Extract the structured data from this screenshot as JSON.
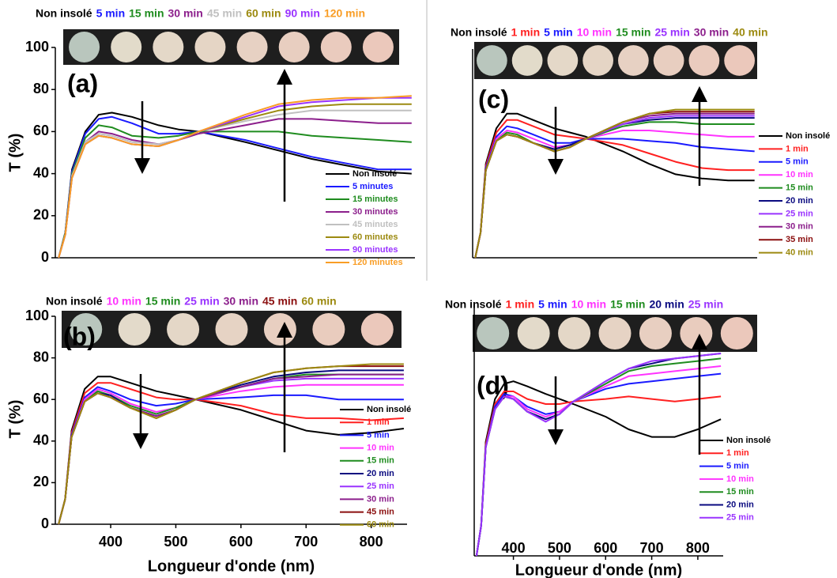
{
  "chart_data": [
    {
      "type": "line",
      "panel_label": "(a)",
      "ylabel": "T (%)",
      "strip_labels": [
        {
          "text": "Non insolé",
          "color": "#000000"
        },
        {
          "text": "5 min",
          "color": "#1a1aff"
        },
        {
          "text": "15 min",
          "color": "#1f8c1f"
        },
        {
          "text": "30 min",
          "color": "#8c1f8c"
        },
        {
          "text": "45 min",
          "color": "#c0c0c0"
        },
        {
          "text": "60 min",
          "color": "#9c8a10"
        },
        {
          "text": "90 min",
          "color": "#9a33ff"
        },
        {
          "text": "120 min",
          "color": "#f99d25"
        }
      ],
      "x": [
        320,
        330,
        340,
        360,
        380,
        400,
        430,
        470,
        500,
        530,
        600,
        650,
        700,
        750,
        800,
        850
      ],
      "xlim": [
        315,
        855
      ],
      "ylim": [
        0,
        100
      ],
      "yticks": [
        0,
        20,
        40,
        60,
        80,
        100
      ],
      "series": [
        {
          "name": "Non insolé",
          "color": "#000000",
          "values": [
            0,
            12,
            42,
            60,
            68,
            69,
            67,
            63,
            61,
            60,
            55,
            51,
            47,
            44,
            41,
            40
          ]
        },
        {
          "name": "5 minutes",
          "color": "#1a1aff",
          "values": [
            0,
            12,
            41,
            59,
            66,
            67,
            64,
            59,
            59,
            60,
            56,
            52,
            48,
            45,
            42,
            42
          ]
        },
        {
          "name": "15 minutes",
          "color": "#1f8c1f",
          "values": [
            0,
            12,
            40,
            57,
            63,
            62,
            58,
            57,
            58,
            60,
            60,
            60,
            58,
            57,
            56,
            55
          ]
        },
        {
          "name": "30 minutes",
          "color": "#8c1f8c",
          "values": [
            0,
            11,
            39,
            55,
            60,
            59,
            56,
            54,
            56,
            59,
            63,
            66,
            66,
            65,
            64,
            64
          ]
        },
        {
          "name": "45 minutes",
          "color": "#c0c0c0",
          "values": [
            0,
            11,
            39,
            55,
            59,
            58,
            55,
            54,
            56,
            60,
            65,
            68,
            70,
            70,
            70,
            70
          ]
        },
        {
          "name": "60 minutes",
          "color": "#9c8a10",
          "values": [
            0,
            11,
            38,
            54,
            58,
            57,
            54,
            53,
            56,
            60,
            66,
            70,
            72,
            73,
            73,
            73
          ]
        },
        {
          "name": "90 minutes",
          "color": "#9a33ff",
          "values": [
            0,
            11,
            38,
            54,
            58,
            57,
            54,
            53,
            56,
            60,
            67,
            72,
            74,
            75,
            76,
            76
          ]
        },
        {
          "name": "120 minutes",
          "color": "#f99d25",
          "values": [
            0,
            11,
            38,
            54,
            58,
            57,
            54,
            53,
            56,
            60,
            68,
            73,
            75,
            76,
            76,
            77
          ]
        }
      ]
    },
    {
      "type": "line",
      "panel_label": "(b)",
      "ylabel": "T (%)",
      "xlabel": "Longueur d'onde (nm)",
      "strip_labels": [
        {
          "text": "Non insolé",
          "color": "#000000"
        },
        {
          "text": "10 min",
          "color": "#ff33ff"
        },
        {
          "text": "15 min",
          "color": "#1f8c1f"
        },
        {
          "text": "25 min",
          "color": "#9a33ff"
        },
        {
          "text": "30 min",
          "color": "#8c1f8c"
        },
        {
          "text": "45 min",
          "color": "#8b0f0f"
        },
        {
          "text": "60 min",
          "color": "#9c8a10"
        }
      ],
      "x": [
        320,
        330,
        340,
        360,
        380,
        400,
        430,
        470,
        500,
        530,
        600,
        650,
        700,
        750,
        800,
        850
      ],
      "xlim": [
        315,
        855
      ],
      "ylim": [
        0,
        100
      ],
      "yticks": [
        0,
        20,
        40,
        60,
        80,
        100
      ],
      "xticks": [
        400,
        500,
        600,
        700,
        800
      ],
      "series": [
        {
          "name": "Non insolé",
          "color": "#000000",
          "values": [
            0,
            12,
            45,
            65,
            71,
            71,
            68,
            64,
            62,
            60,
            55,
            50,
            45,
            43,
            44,
            46
          ]
        },
        {
          "name": "1 min",
          "color": "#ff2020",
          "values": [
            0,
            12,
            44,
            63,
            68,
            68,
            65,
            61,
            60,
            60,
            57,
            53,
            51,
            51,
            50,
            51
          ]
        },
        {
          "name": "5 min",
          "color": "#1a1aff",
          "values": [
            0,
            12,
            43,
            61,
            66,
            64,
            60,
            57,
            58,
            60,
            61,
            62,
            62,
            60,
            60,
            60
          ]
        },
        {
          "name": "10 min",
          "color": "#ff33ff",
          "values": [
            0,
            12,
            42,
            60,
            65,
            63,
            58,
            54,
            56,
            60,
            64,
            66,
            67,
            67,
            67,
            67
          ]
        },
        {
          "name": "15 min",
          "color": "#1f8c1f",
          "values": [
            0,
            12,
            42,
            59,
            64,
            62,
            57,
            53,
            56,
            60,
            66,
            70,
            72,
            72,
            72,
            72
          ]
        },
        {
          "name": "20 min",
          "color": "#0a0a80",
          "values": [
            0,
            12,
            42,
            59,
            63,
            62,
            56,
            52,
            55,
            60,
            67,
            71,
            73,
            74,
            74,
            74
          ]
        },
        {
          "name": "25 min",
          "color": "#9a33ff",
          "values": [
            0,
            12,
            42,
            59,
            63,
            61,
            56,
            52,
            55,
            60,
            66,
            69,
            70,
            70,
            70,
            70
          ]
        },
        {
          "name": "30 min",
          "color": "#8c1f8c",
          "values": [
            0,
            12,
            42,
            59,
            63,
            61,
            56,
            52,
            55,
            60,
            66,
            70,
            71,
            72,
            72,
            72
          ]
        },
        {
          "name": "45 min",
          "color": "#8b0f0f",
          "values": [
            0,
            12,
            42,
            59,
            63,
            61,
            56,
            51,
            55,
            60,
            68,
            73,
            75,
            76,
            76,
            76
          ]
        },
        {
          "name": "60 min",
          "color": "#9c8a10",
          "values": [
            0,
            12,
            42,
            59,
            63,
            61,
            56,
            51,
            55,
            60,
            68,
            73,
            75,
            76,
            77,
            77
          ]
        }
      ]
    },
    {
      "type": "line",
      "panel_label": "(c)",
      "strip_labels": [
        {
          "text": "Non insolé",
          "color": "#000000"
        },
        {
          "text": "1 min",
          "color": "#ff2020"
        },
        {
          "text": "5 min",
          "color": "#1a1aff"
        },
        {
          "text": "10 min",
          "color": "#ff33ff"
        },
        {
          "text": "15 min",
          "color": "#1f8c1f"
        },
        {
          "text": "25 min",
          "color": "#9a33ff"
        },
        {
          "text": "30 min",
          "color": "#8c1f8c"
        },
        {
          "text": "40 min",
          "color": "#9c8a10"
        }
      ],
      "x": [
        320,
        330,
        340,
        360,
        380,
        400,
        430,
        470,
        500,
        530,
        600,
        650,
        700,
        750,
        800,
        850
      ],
      "xlim": [
        315,
        855
      ],
      "ylim": [
        0,
        100
      ],
      "series": [
        {
          "name": "Non insolé",
          "color": "#000000",
          "values": [
            0,
            12,
            45,
            62,
            69,
            69,
            66,
            62,
            60,
            58,
            51,
            45,
            40,
            38,
            37,
            37
          ]
        },
        {
          "name": "1 min",
          "color": "#ff2020",
          "values": [
            0,
            12,
            44,
            60,
            66,
            66,
            63,
            59,
            58,
            57,
            54,
            50,
            46,
            43,
            42,
            42
          ]
        },
        {
          "name": "5 min",
          "color": "#1a1aff",
          "values": [
            0,
            12,
            43,
            58,
            63,
            62,
            59,
            55,
            55,
            57,
            57,
            56,
            55,
            53,
            52,
            51
          ]
        },
        {
          "name": "10 min",
          "color": "#ff33ff",
          "values": [
            0,
            12,
            42,
            57,
            61,
            60,
            57,
            53,
            54,
            57,
            61,
            61,
            60,
            59,
            58,
            58
          ]
        },
        {
          "name": "15 min",
          "color": "#1f8c1f",
          "values": [
            0,
            12,
            42,
            56,
            60,
            59,
            55,
            52,
            54,
            57,
            63,
            65,
            65,
            64,
            64,
            64
          ]
        },
        {
          "name": "20 min",
          "color": "#0a0a80",
          "values": [
            0,
            12,
            42,
            56,
            59,
            58,
            55,
            52,
            54,
            57,
            64,
            66,
            67,
            67,
            67,
            67
          ]
        },
        {
          "name": "25 min",
          "color": "#9a33ff",
          "values": [
            0,
            12,
            42,
            56,
            59,
            58,
            55,
            51,
            53,
            57,
            64,
            67,
            68,
            68,
            68,
            68
          ]
        },
        {
          "name": "30 min",
          "color": "#8c1f8c",
          "values": [
            0,
            12,
            42,
            56,
            59,
            58,
            55,
            51,
            53,
            57,
            65,
            68,
            69,
            69,
            69,
            69
          ]
        },
        {
          "name": "35 min",
          "color": "#8b0f0f",
          "values": [
            0,
            12,
            42,
            56,
            59,
            58,
            55,
            51,
            53,
            57,
            65,
            69,
            70,
            70,
            70,
            70
          ]
        },
        {
          "name": "40 min",
          "color": "#9c8a10",
          "values": [
            0,
            12,
            42,
            56,
            59,
            58,
            55,
            51,
            53,
            57,
            65,
            69,
            71,
            71,
            71,
            71
          ]
        }
      ]
    },
    {
      "type": "line",
      "panel_label": "(d)",
      "xlabel": "Longueur d'onde (nm)",
      "strip_labels": [
        {
          "text": "Non insolé",
          "color": "#000000"
        },
        {
          "text": "1 min",
          "color": "#ff2020"
        },
        {
          "text": "5 min",
          "color": "#1a1aff"
        },
        {
          "text": "10 min",
          "color": "#ff33ff"
        },
        {
          "text": "15 min",
          "color": "#1f8c1f"
        },
        {
          "text": "20 min",
          "color": "#0a0a80"
        },
        {
          "text": "25 min",
          "color": "#9a33ff"
        }
      ],
      "x": [
        320,
        330,
        340,
        360,
        380,
        400,
        430,
        470,
        500,
        530,
        600,
        650,
        700,
        750,
        800,
        850
      ],
      "xlim": [
        315,
        855
      ],
      "ylim": [
        0,
        100
      ],
      "xticks": [
        400,
        500,
        600,
        700,
        800
      ],
      "series": [
        {
          "name": "Non insolé",
          "color": "#000000",
          "values": [
            0,
            12,
            45,
            62,
            68,
            69,
            67,
            64,
            62,
            60,
            55,
            50,
            47,
            47,
            50,
            54
          ]
        },
        {
          "name": "1 min",
          "color": "#ff2020",
          "values": [
            0,
            12,
            44,
            60,
            65,
            65,
            62,
            60,
            60,
            61,
            62,
            63,
            62,
            61,
            62,
            63
          ]
        },
        {
          "name": "5 min",
          "color": "#1a1aff",
          "values": [
            0,
            12,
            43,
            59,
            64,
            63,
            59,
            56,
            57,
            61,
            66,
            68,
            69,
            70,
            71,
            72
          ]
        },
        {
          "name": "10 min",
          "color": "#ff33ff",
          "values": [
            0,
            12,
            43,
            58,
            63,
            63,
            58,
            55,
            57,
            61,
            67,
            71,
            72,
            73,
            74,
            75
          ]
        },
        {
          "name": "15 min",
          "color": "#1f8c1f",
          "values": [
            0,
            12,
            43,
            58,
            63,
            62,
            57,
            54,
            56,
            61,
            68,
            73,
            75,
            76,
            77,
            78
          ]
        },
        {
          "name": "20 min",
          "color": "#0a0a80",
          "values": [
            0,
            12,
            43,
            58,
            63,
            62,
            57,
            54,
            56,
            61,
            69,
            74,
            76,
            78,
            79,
            80
          ]
        },
        {
          "name": "25 min",
          "color": "#9a33ff",
          "values": [
            0,
            12,
            43,
            58,
            63,
            62,
            57,
            53,
            56,
            61,
            69,
            74,
            77,
            78,
            79,
            80
          ]
        }
      ]
    }
  ]
}
